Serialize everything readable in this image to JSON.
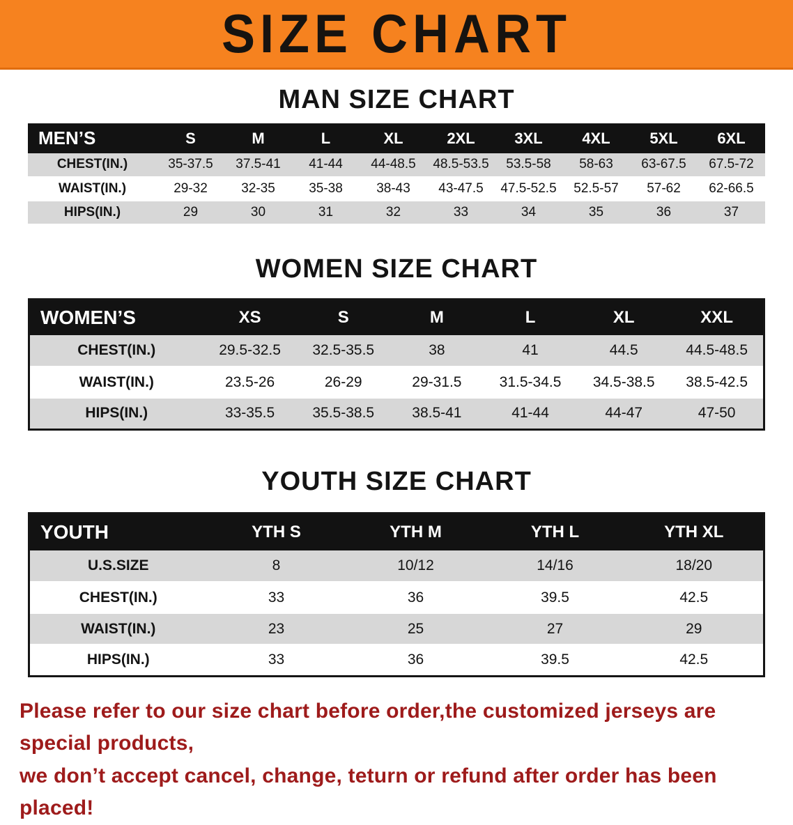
{
  "banner": {
    "title": "SIZE CHART"
  },
  "sections": [
    {
      "id": "men",
      "heading": "MAN SIZE CHART",
      "table": {
        "header": [
          "MEN’S",
          "S",
          "M",
          "L",
          "XL",
          "2XL",
          "3XL",
          "4XL",
          "5XL",
          "6XL"
        ],
        "rows": [
          {
            "label": "CHEST(IN.)",
            "values": [
              "35-37.5",
              "37.5-41",
              "41-44",
              "44-48.5",
              "48.5-53.5",
              "53.5-58",
              "58-63",
              "63-67.5",
              "67.5-72"
            ]
          },
          {
            "label": "WAIST(IN.)",
            "values": [
              "29-32",
              "32-35",
              "35-38",
              "38-43",
              "43-47.5",
              "47.5-52.5",
              "52.5-57",
              "57-62",
              "62-66.5"
            ]
          },
          {
            "label": "HIPS(IN.)",
            "values": [
              "29",
              "30",
              "31",
              "32",
              "33",
              "34",
              "35",
              "36",
              "37"
            ]
          }
        ]
      }
    },
    {
      "id": "women",
      "heading": "WOMEN SIZE CHART",
      "table": {
        "header": [
          "WOMEN’S",
          "XS",
          "S",
          "M",
          "L",
          "XL",
          "XXL"
        ],
        "rows": [
          {
            "label": "CHEST(IN.)",
            "values": [
              "29.5-32.5",
              "32.5-35.5",
              "38",
              "41",
              "44.5",
              "44.5-48.5"
            ]
          },
          {
            "label": "WAIST(IN.)",
            "values": [
              "23.5-26",
              "26-29",
              "29-31.5",
              "31.5-34.5",
              "34.5-38.5",
              "38.5-42.5"
            ]
          },
          {
            "label": "HIPS(IN.)",
            "values": [
              "33-35.5",
              "35.5-38.5",
              "38.5-41",
              "41-44",
              "44-47",
              "47-50"
            ]
          }
        ]
      }
    },
    {
      "id": "youth",
      "heading": "YOUTH SIZE CHART",
      "table": {
        "header": [
          "YOUTH",
          "YTH S",
          "YTH M",
          "YTH L",
          "YTH XL"
        ],
        "rows": [
          {
            "label": "U.S.SIZE",
            "values": [
              "8",
              "10/12",
              "14/16",
              "18/20"
            ]
          },
          {
            "label": "CHEST(IN.)",
            "values": [
              "33",
              "36",
              "39.5",
              "42.5"
            ]
          },
          {
            "label": "WAIST(IN.)",
            "values": [
              "23",
              "25",
              "27",
              "29"
            ]
          },
          {
            "label": "HIPS(IN.)",
            "values": [
              "33",
              "36",
              "39.5",
              "42.5"
            ]
          }
        ]
      }
    }
  ],
  "disclaimer": {
    "line1": "Please refer to our size chart before order,the customized jerseys are special products,",
    "line2": "we don’t accept cancel, change, teturn or refund after order has been placed!"
  },
  "colors": {
    "banner_orange": "#f6821f",
    "table_header_black": "#121212",
    "row_stripe_gray": "#d7d7d7",
    "disclaimer_red": "#9e1b1b"
  }
}
